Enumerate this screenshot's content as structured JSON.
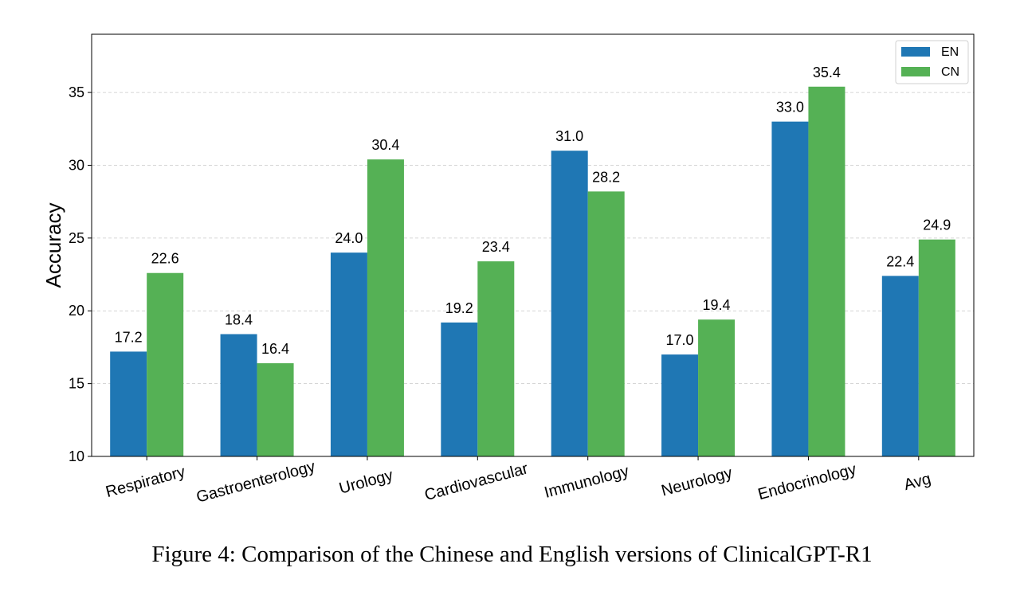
{
  "caption": "Figure 4: Comparison of the Chinese and English versions of ClinicalGPT-R1",
  "chart_data": {
    "type": "bar",
    "title": "",
    "xlabel": "",
    "ylabel": "Accuracy",
    "ylim": [
      10,
      39
    ],
    "yticks": [
      10,
      15,
      20,
      25,
      30,
      35
    ],
    "grid": true,
    "legend_position": "top-right",
    "categories": [
      "Respiratory",
      "Gastroenterology",
      "Urology",
      "Cardiovascular",
      "Immunology",
      "Neurology",
      "Endocrinology",
      "Avg"
    ],
    "series": [
      {
        "name": "EN",
        "color": "#1f77b4",
        "values": [
          17.2,
          18.4,
          24.0,
          19.2,
          31.0,
          17.0,
          33.0,
          22.4
        ]
      },
      {
        "name": "CN",
        "color": "#55b155",
        "values": [
          22.6,
          16.4,
          30.4,
          23.4,
          28.2,
          19.4,
          35.4,
          24.9
        ]
      }
    ]
  }
}
